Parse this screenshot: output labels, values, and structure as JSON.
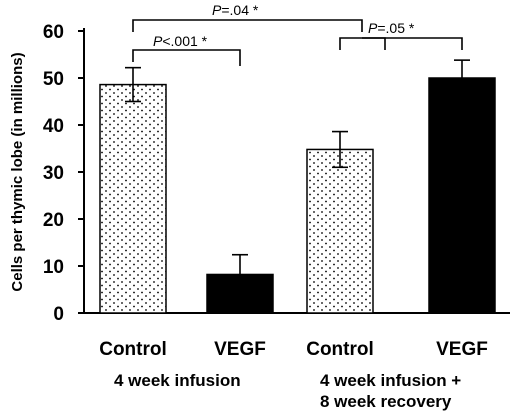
{
  "chart_data": {
    "type": "bar",
    "ylabel": "Cells per thymic lobe (in millions)",
    "ylim": [
      0,
      60
    ],
    "yticks": [
      0,
      10,
      20,
      30,
      40,
      50,
      60
    ],
    "categories": [
      "Control",
      "VEGF",
      "Control",
      "VEGF"
    ],
    "values": [
      48.6,
      8.2,
      34.8,
      50.0
    ],
    "errors": [
      3.6,
      4.2,
      3.8,
      3.8
    ],
    "fills": [
      "dotted",
      "black",
      "dotted",
      "black"
    ],
    "groups": [
      "4 week infusion",
      "4 week infusion +",
      "8 week recovery"
    ],
    "annotations": [
      {
        "italic": "P",
        "text": "=.04 *"
      },
      {
        "italic": "P",
        "text": "<.001 *"
      },
      {
        "italic": "P",
        "text": "=.05 *"
      }
    ]
  },
  "colors": {
    "dotted_fill": "#ffffff",
    "dot": "#000000",
    "solid": "#000000"
  }
}
